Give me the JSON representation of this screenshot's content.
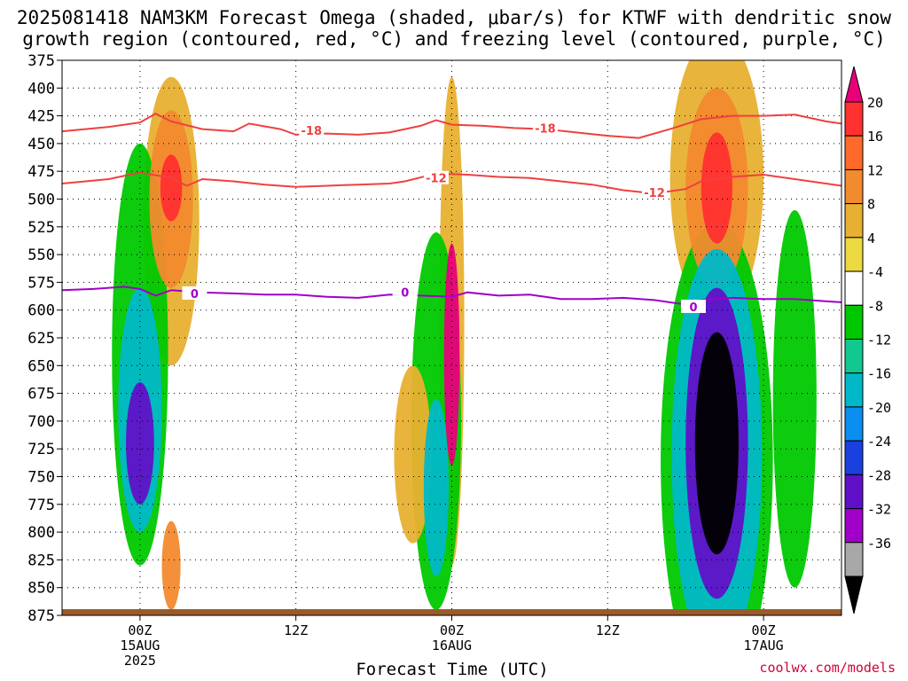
{
  "title": {
    "line1": "2025081418 NAM3KM Forecast Omega (shaded, μbar/s) for KTWF with dendritic snow",
    "line2": "growth region (contoured, red, °C) and freezing level (contoured, purple, °C)"
  },
  "credit": "coolwx.com/models",
  "chart_data": {
    "type": "heatmap",
    "title": "2025081418 NAM3KM Forecast Omega (shaded, μbar/s) for KTWF with dendritic snow growth region (contoured, red, °C) and freezing level (contoured, purple, °C)",
    "xlabel": "Forecast Time (UTC)",
    "ylabel": "",
    "xlim_hours": [
      -5,
      45
    ],
    "ylim_hpa": [
      375,
      875
    ],
    "y_ticks": [
      375,
      400,
      425,
      450,
      475,
      500,
      525,
      550,
      575,
      600,
      625,
      650,
      675,
      700,
      725,
      750,
      775,
      800,
      825,
      850,
      875
    ],
    "x_ticks": [
      {
        "hour": 0,
        "lines": [
          "00Z",
          "15AUG",
          "2025"
        ]
      },
      {
        "hour": 10,
        "lines": [
          "12Z"
        ]
      },
      {
        "hour": 20,
        "lines": [
          "00Z",
          "16AUG"
        ]
      },
      {
        "hour": 30,
        "lines": [
          "12Z"
        ]
      },
      {
        "hour": 40,
        "lines": [
          "00Z",
          "17AUG"
        ]
      }
    ],
    "colorbar": {
      "labels": [
        "20",
        "16",
        "12",
        "8",
        "4",
        "-4",
        "-8",
        "-12",
        "-16",
        "-20",
        "-24",
        "-28",
        "-32",
        "-36"
      ],
      "colors": [
        "#e8007a",
        "#ff3030",
        "#ff6a2a",
        "#f28a2e",
        "#e8b030",
        "#ecd840",
        "#ffffff",
        "#00c800",
        "#10c890",
        "#00b8c8",
        "#0a8ef0",
        "#1a40e0",
        "#6010c8",
        "#a000c8",
        "#a8a8a8",
        "#000000"
      ]
    },
    "contours": [
      {
        "label": "-18",
        "color": "#f04040",
        "points": [
          [
            -5,
            439
          ],
          [
            -2,
            435
          ],
          [
            0,
            431
          ],
          [
            1,
            423
          ],
          [
            2,
            430
          ],
          [
            4,
            437
          ],
          [
            6,
            439
          ],
          [
            7,
            432
          ],
          [
            9,
            437
          ],
          [
            10,
            442
          ],
          [
            12,
            441
          ],
          [
            14,
            442
          ],
          [
            16,
            440
          ],
          [
            18,
            434
          ],
          [
            19,
            429
          ],
          [
            20,
            433
          ],
          [
            22,
            434
          ],
          [
            24,
            436
          ],
          [
            26,
            437
          ],
          [
            28,
            440
          ],
          [
            30,
            443
          ],
          [
            32,
            445
          ],
          [
            34,
            437
          ],
          [
            36,
            428
          ],
          [
            38,
            425
          ],
          [
            40,
            425
          ],
          [
            42,
            424
          ],
          [
            44,
            430
          ],
          [
            45,
            432
          ]
        ],
        "label_at": [
          [
            11,
            438
          ],
          [
            26,
            436
          ]
        ]
      },
      {
        "label": "-12",
        "color": "#f04040",
        "points": [
          [
            -5,
            486
          ],
          [
            -2,
            482
          ],
          [
            0,
            476
          ],
          [
            2,
            481
          ],
          [
            3,
            488
          ],
          [
            4,
            482
          ],
          [
            6,
            484
          ],
          [
            8,
            487
          ],
          [
            10,
            489
          ],
          [
            12,
            488
          ],
          [
            14,
            487
          ],
          [
            16,
            486
          ],
          [
            17,
            484
          ],
          [
            19,
            477
          ],
          [
            21,
            478
          ],
          [
            23,
            480
          ],
          [
            25,
            481
          ],
          [
            27,
            484
          ],
          [
            29,
            487
          ],
          [
            31,
            492
          ],
          [
            33,
            495
          ],
          [
            35,
            491
          ],
          [
            36,
            484
          ],
          [
            38,
            480
          ],
          [
            40,
            478
          ],
          [
            42,
            482
          ],
          [
            44,
            486
          ],
          [
            45,
            488
          ]
        ],
        "label_at": [
          [
            19,
            481
          ],
          [
            33,
            494
          ]
        ]
      },
      {
        "label": "0",
        "color": "#a000c8",
        "points": [
          [
            -5,
            582
          ],
          [
            -3,
            581
          ],
          [
            -1,
            579
          ],
          [
            0,
            581
          ],
          [
            1,
            587
          ],
          [
            2,
            582
          ],
          [
            4,
            584
          ],
          [
            6,
            585
          ],
          [
            8,
            586
          ],
          [
            10,
            586
          ],
          [
            12,
            588
          ],
          [
            14,
            589
          ],
          [
            16,
            586
          ],
          [
            18,
            587
          ],
          [
            20,
            588
          ],
          [
            21,
            584
          ],
          [
            23,
            587
          ],
          [
            25,
            586
          ],
          [
            27,
            590
          ],
          [
            29,
            590
          ],
          [
            31,
            589
          ],
          [
            33,
            591
          ],
          [
            35,
            595
          ],
          [
            36,
            591
          ],
          [
            38,
            589
          ],
          [
            40,
            590
          ],
          [
            42,
            590
          ],
          [
            44,
            592
          ],
          [
            45,
            593
          ]
        ],
        "label_at": [
          [
            3.5,
            585
          ],
          [
            17,
            584
          ],
          [
            35.5,
            597
          ]
        ]
      }
    ],
    "omega_cells": [
      {
        "t": 0,
        "p": 720,
        "rx": 0.9,
        "ry": 55,
        "value": -26
      },
      {
        "t": 0,
        "p": 690,
        "rx": 1.4,
        "ry": 110,
        "value": -14
      },
      {
        "t": 0,
        "p": 640,
        "rx": 1.8,
        "ry": 190,
        "value": -6
      },
      {
        "t": 2,
        "p": 490,
        "rx": 0.7,
        "ry": 30,
        "value": 18
      },
      {
        "t": 2,
        "p": 500,
        "rx": 1.4,
        "ry": 80,
        "value": 10
      },
      {
        "t": 2,
        "p": 520,
        "rx": 1.8,
        "ry": 130,
        "value": 5
      },
      {
        "t": 2,
        "p": 830,
        "rx": 0.6,
        "ry": 40,
        "value": 8
      },
      {
        "t": 20,
        "p": 640,
        "rx": 0.5,
        "ry": 100,
        "value": 20
      },
      {
        "t": 20,
        "p": 610,
        "rx": 0.8,
        "ry": 220,
        "value": 6
      },
      {
        "t": 19,
        "p": 760,
        "rx": 0.8,
        "ry": 80,
        "value": -12
      },
      {
        "t": 19,
        "p": 700,
        "rx": 1.6,
        "ry": 170,
        "value": -6
      },
      {
        "t": 17.5,
        "p": 730,
        "rx": 1.2,
        "ry": 80,
        "value": 6
      },
      {
        "t": 37,
        "p": 720,
        "rx": 1.4,
        "ry": 100,
        "value": -36
      },
      {
        "t": 37,
        "p": 720,
        "rx": 2.0,
        "ry": 140,
        "value": -26
      },
      {
        "t": 37,
        "p": 730,
        "rx": 2.9,
        "ry": 185,
        "value": -12
      },
      {
        "t": 37,
        "p": 735,
        "rx": 3.6,
        "ry": 215,
        "value": -6
      },
      {
        "t": 37,
        "p": 490,
        "rx": 1.0,
        "ry": 50,
        "value": 16
      },
      {
        "t": 37,
        "p": 490,
        "rx": 2.0,
        "ry": 90,
        "value": 10
      },
      {
        "t": 37,
        "p": 480,
        "rx": 3.0,
        "ry": 130,
        "value": 5
      },
      {
        "t": 42,
        "p": 680,
        "rx": 1.4,
        "ry": 170,
        "value": -6
      }
    ]
  }
}
